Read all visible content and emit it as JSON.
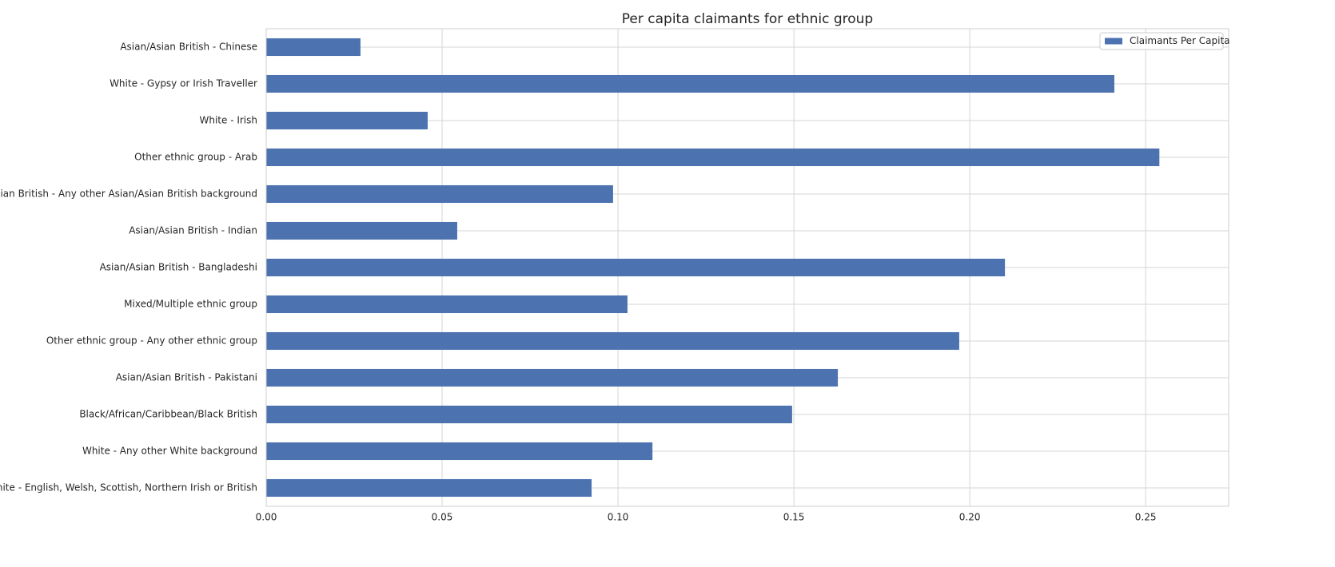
{
  "chart_data": {
    "type": "barh",
    "title": "Per capita claimants for ethnic group",
    "categories": [
      "Asian/Asian British - Chinese",
      "White - Gypsy or Irish Traveller",
      "White - Irish",
      "Other ethnic group - Arab",
      "Asian/Asian British - Any other Asian/Asian British background",
      "Asian/Asian British - Indian",
      "Asian/Asian British - Bangladeshi",
      "Mixed/Multiple ethnic group",
      "Other ethnic group - Any other ethnic group",
      "Asian/Asian British - Pakistani",
      "Black/African/Caribbean/Black British",
      "White - Any other White background",
      "White - English, Welsh, Scottish, Northern Irish or British"
    ],
    "series": [
      {
        "name": "Claimants Per Capita",
        "color": "#4c72b0",
        "values": [
          0.0268,
          0.2411,
          0.0459,
          0.2539,
          0.0986,
          0.0543,
          0.21,
          0.1027,
          0.197,
          0.1625,
          0.1495,
          0.1098,
          0.0925
        ]
      }
    ],
    "xlim": [
      0,
      0.2736
    ],
    "xticks": [
      {
        "value": 0,
        "label": "0.00"
      },
      {
        "value": 0.05,
        "label": "0.05"
      },
      {
        "value": 0.1,
        "label": "0.10"
      },
      {
        "value": 0.15,
        "label": "0.15"
      },
      {
        "value": 0.2,
        "label": "0.20"
      },
      {
        "value": 0.25,
        "label": "0.25"
      }
    ],
    "grid": true,
    "legend": "upper right"
  }
}
